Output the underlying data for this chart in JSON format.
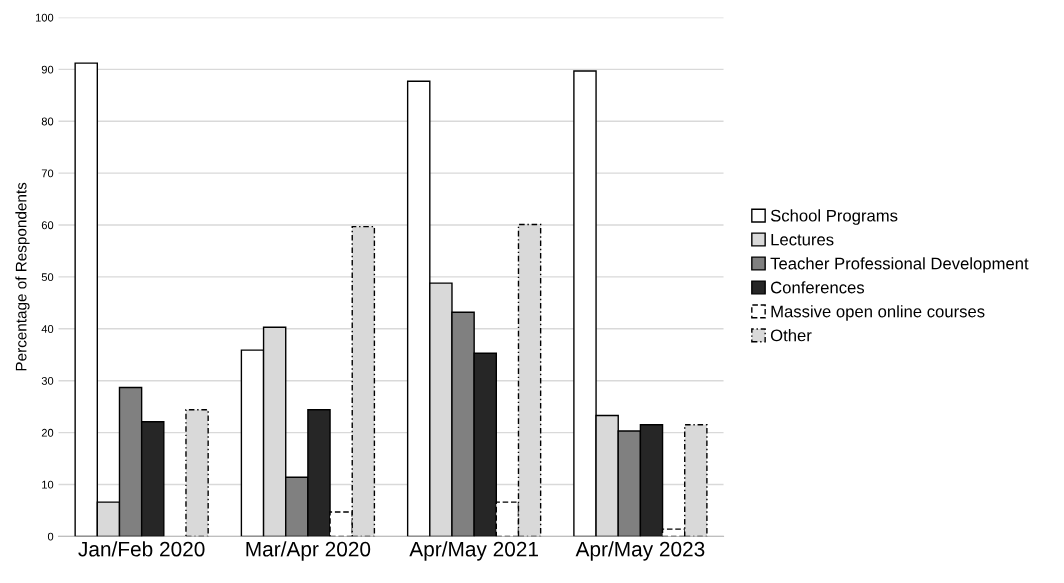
{
  "chart_data": {
    "type": "bar",
    "ylabel": "Percentage of Respondents",
    "categories": [
      "Jan/Feb 2020",
      "Mar/Apr 2020",
      "Apr/May 2021",
      "Apr/May 2023"
    ],
    "series": [
      {
        "name": "School Programs",
        "color": "#ffffff",
        "values": [
          91.2,
          35.9,
          87.7,
          89.7
        ]
      },
      {
        "name": "Lectures",
        "color": "#d9d9d9",
        "values": [
          6.6,
          40.3,
          48.8,
          23.3
        ]
      },
      {
        "name": "Teacher Professional Development",
        "color": "#808080",
        "values": [
          28.7,
          11.4,
          43.2,
          20.3
        ]
      },
      {
        "name": "Conferences",
        "color": "#262626",
        "values": [
          22.1,
          24.4,
          35.3,
          21.5
        ]
      },
      {
        "name": "Massive open online courses",
        "color": "#ffffff",
        "line_style": "dashed",
        "values": [
          null,
          4.7,
          6.6,
          1.4
        ]
      },
      {
        "name": "Other",
        "color": "#d9d9d9",
        "line_style": "dotted",
        "values": [
          24.4,
          59.7,
          60.1,
          21.5
        ]
      }
    ],
    "ylim": [
      0,
      100
    ],
    "yticks": [
      0,
      10,
      20,
      30,
      40,
      50,
      60,
      70,
      80,
      90,
      100
    ],
    "grid": "y",
    "legend": "right"
  }
}
